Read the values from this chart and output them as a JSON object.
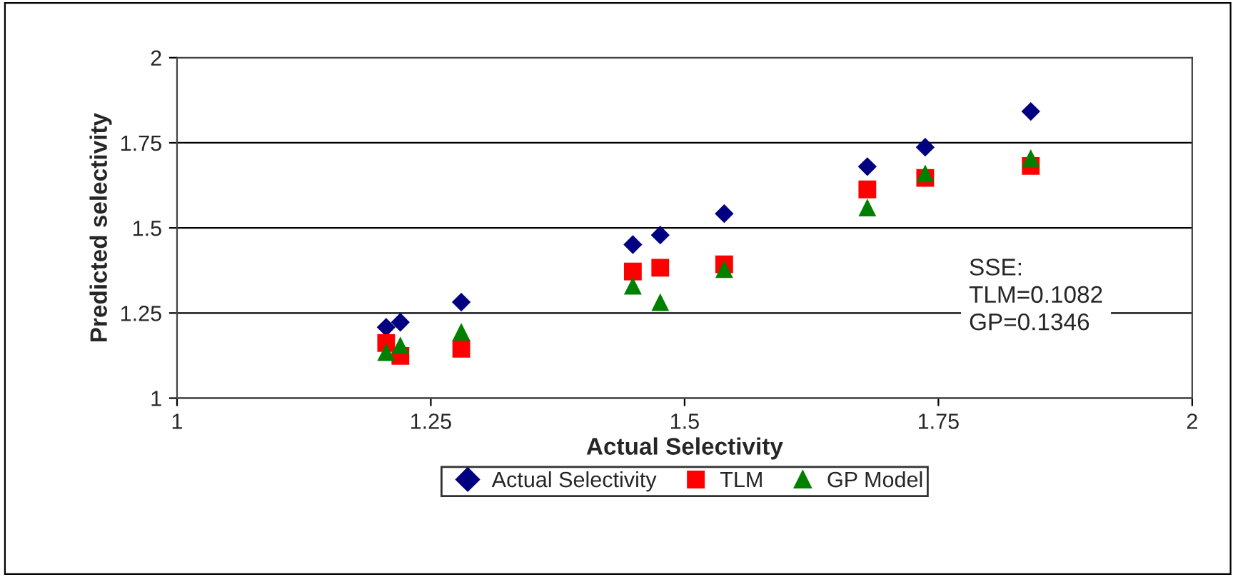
{
  "chart_data": {
    "type": "scatter",
    "xlabel": "Actual Selectivity",
    "ylabel": "Predicted selectivity",
    "xlim": [
      1,
      2
    ],
    "xticks": [
      1,
      1.25,
      1.5,
      1.75,
      2
    ],
    "ylim": [
      1,
      2
    ],
    "yticks": [
      1,
      1.25,
      1.5,
      1.75,
      2
    ],
    "grid": "y",
    "legend": "bottom",
    "x": [
      1.206,
      1.22,
      1.28,
      1.449,
      1.476,
      1.539,
      1.68,
      1.737,
      1.841
    ],
    "series": [
      {
        "name": "Actual Selectivity",
        "color": "#000080",
        "marker": "diamond",
        "values": [
          1.208,
          1.223,
          1.282,
          1.451,
          1.479,
          1.542,
          1.68,
          1.737,
          1.842
        ]
      },
      {
        "name": "TLM",
        "color": "#ff0000",
        "marker": "square",
        "values": [
          1.162,
          1.124,
          1.145,
          1.372,
          1.383,
          1.393,
          1.613,
          1.647,
          1.682
        ]
      },
      {
        "name": "GP Model",
        "color": "#008000",
        "marker": "triangle",
        "values": [
          1.135,
          1.155,
          1.195,
          1.33,
          1.282,
          1.379,
          1.56,
          1.66,
          1.705
        ]
      }
    ],
    "annotations": [
      "SSE:\nTLM=0.1082\nGP=0.1346"
    ]
  }
}
